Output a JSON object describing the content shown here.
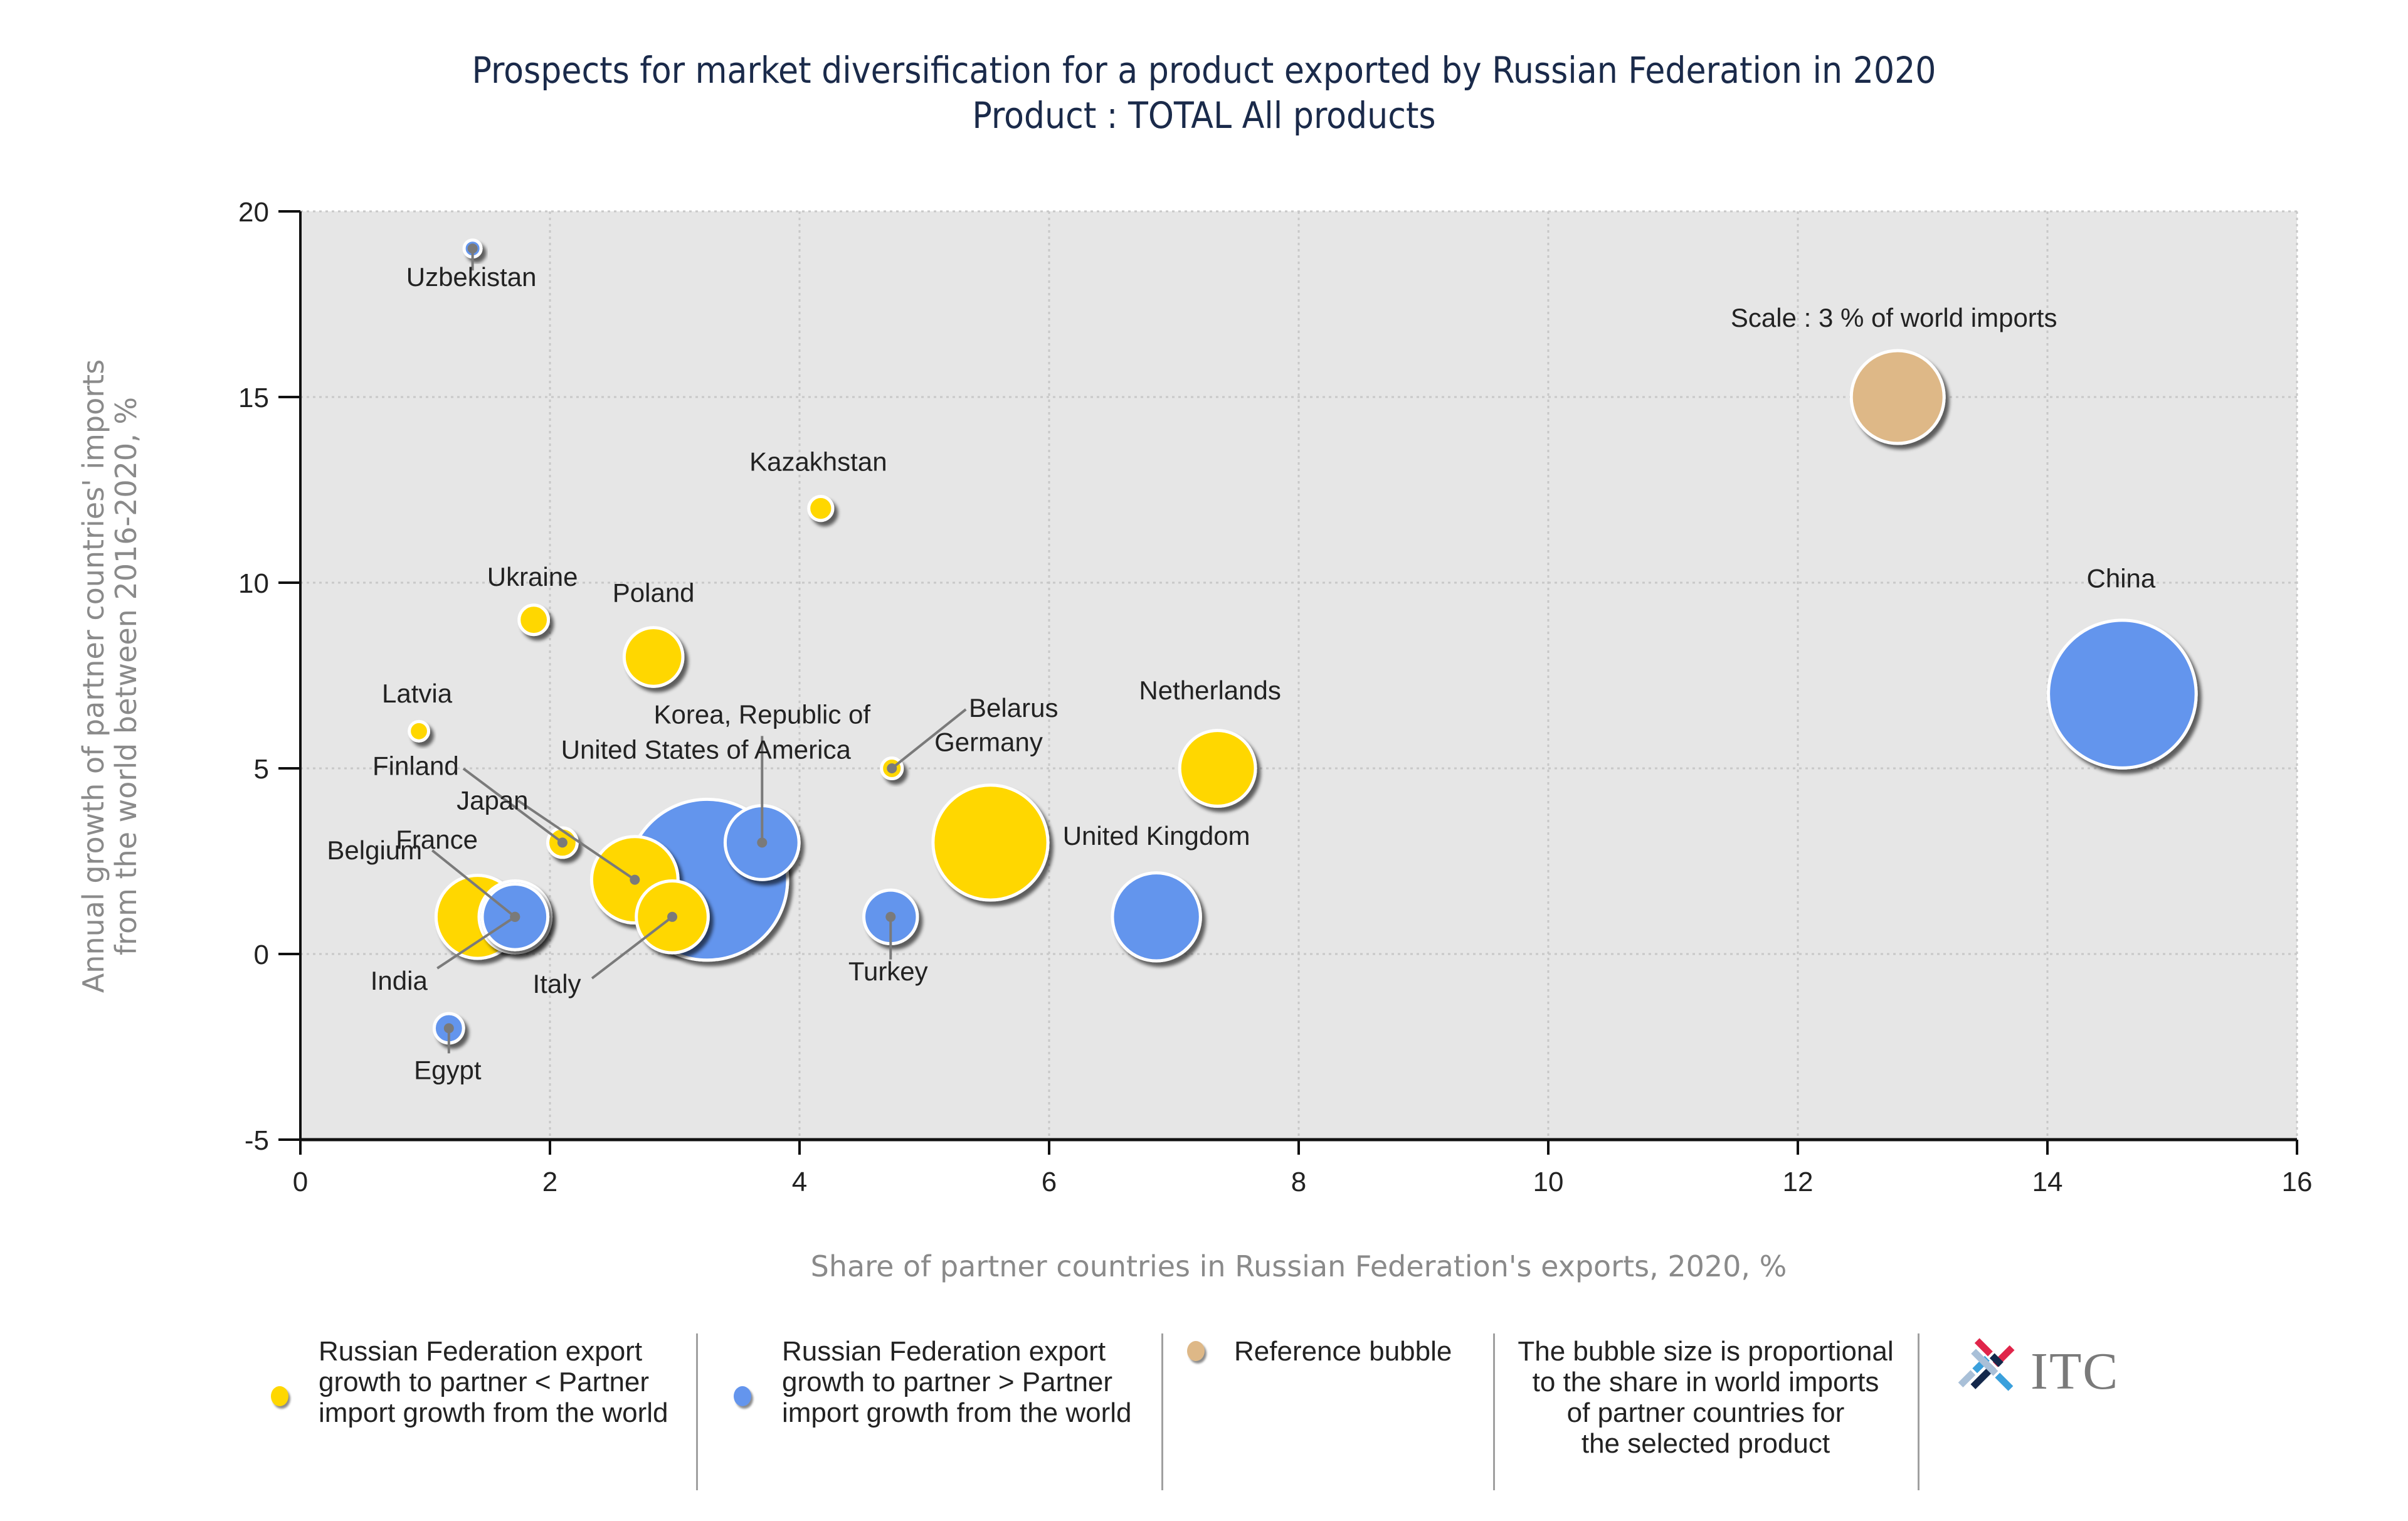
{
  "chart_data": {
    "type": "bubble",
    "title": "Prospects for market diversification for a product exported by Russian Federation in 2020",
    "subtitle": "Product : TOTAL All products",
    "xlabel": "Share of partner countries in Russian Federation's exports, 2020, %",
    "ylabel_line1": "Annual growth of partner countries' imports",
    "ylabel_line2": "from the world between 2016-2020, %",
    "xlim": [
      0,
      16
    ],
    "ylim": [
      -5,
      20
    ],
    "x_ticks": [
      0,
      2,
      4,
      6,
      8,
      10,
      12,
      14,
      16
    ],
    "y_ticks": [
      -5,
      0,
      5,
      10,
      15,
      20
    ],
    "x_tick_labels": [
      "0",
      "2",
      "4",
      "6",
      "8",
      "10",
      "12",
      "14",
      "16"
    ],
    "y_tick_labels": [
      "-5",
      "0",
      "5",
      "10",
      "15",
      "20"
    ],
    "grid": true,
    "size_note": "bubble size proportional to share in world imports (relative)",
    "colors": {
      "slower": "#FFD700",
      "faster": "#6495ED",
      "reference": "#DEB887",
      "plot_bg": "#E6E6E6"
    },
    "series": [
      {
        "name": "Russian Federation export growth to partner < Partner import growth from the world",
        "key": "slower"
      },
      {
        "name": "Russian Federation export growth to partner > Partner import growth from the world",
        "key": "faster"
      },
      {
        "name": "Reference bubble",
        "key": "reference"
      }
    ],
    "points": [
      {
        "country": "United States of America",
        "x": 3.26,
        "y": 2.0,
        "size": 9.0,
        "group": "faster"
      },
      {
        "country": "China",
        "x": 14.6,
        "y": 7.0,
        "size": 7.6,
        "group": "faster"
      },
      {
        "country": "Germany",
        "x": 5.53,
        "y": 3.0,
        "size": 4.6,
        "group": "slower"
      },
      {
        "country": "United Kingdom",
        "x": 6.86,
        "y": 1.0,
        "size": 2.7,
        "group": "faster"
      },
      {
        "country": "France",
        "x": 1.42,
        "y": 1.0,
        "size": 2.4,
        "group": "slower"
      },
      {
        "country": "Japan",
        "x": 2.68,
        "y": 2.0,
        "size": 2.6,
        "group": "slower"
      },
      {
        "country": "Netherlands",
        "x": 7.35,
        "y": 5.0,
        "size": 2.0,
        "group": "slower"
      },
      {
        "country": "Korea, Republic of",
        "x": 3.7,
        "y": 3.0,
        "size": 1.9,
        "group": "faster"
      },
      {
        "country": "Belgium",
        "x": 1.72,
        "y": 1.0,
        "size": 1.5,
        "group": "faster"
      },
      {
        "country": "India",
        "x": 1.72,
        "y": 1.0,
        "size": 1.8,
        "group": "faster"
      },
      {
        "country": "Italy",
        "x": 2.98,
        "y": 1.0,
        "size": 1.8,
        "group": "slower"
      },
      {
        "country": "Poland",
        "x": 2.83,
        "y": 8.0,
        "size": 1.2,
        "group": "slower"
      },
      {
        "country": "Turkey",
        "x": 4.73,
        "y": 1.0,
        "size": 1.0,
        "group": "faster"
      },
      {
        "country": "Finland",
        "x": 2.1,
        "y": 3.0,
        "size": 0.3,
        "group": "slower"
      },
      {
        "country": "Ukraine",
        "x": 1.87,
        "y": 9.0,
        "size": 0.3,
        "group": "slower"
      },
      {
        "country": "Kazakhstan",
        "x": 4.17,
        "y": 12.0,
        "size": 0.2,
        "group": "slower"
      },
      {
        "country": "Egypt",
        "x": 1.19,
        "y": -2.0,
        "size": 0.3,
        "group": "faster"
      },
      {
        "country": "Belarus",
        "x": 4.74,
        "y": 5.0,
        "size": 0.15,
        "group": "slower"
      },
      {
        "country": "Latvia",
        "x": 0.95,
        "y": 6.0,
        "size": 0.13,
        "group": "slower"
      },
      {
        "country": "Uzbekistan",
        "x": 1.38,
        "y": 19.0,
        "size": 0.1,
        "group": "faster"
      }
    ],
    "reference_bubble": {
      "label": "Scale : 3 % of world imports",
      "x": 12.8,
      "y": 15.0,
      "size": 3.0,
      "group": "reference"
    }
  },
  "legend": {
    "items": [
      {
        "lines": [
          "Russian Federation export",
          "growth to partner < Partner",
          "import growth from the world"
        ],
        "color": "#FFD700"
      },
      {
        "lines": [
          "Russian Federation export",
          "growth to partner > Partner",
          "import growth from the world"
        ],
        "color": "#6495ED"
      },
      {
        "lines": [
          "Reference bubble"
        ],
        "color": "#DEB887"
      }
    ],
    "note_lines": [
      "The bubble size is proportional",
      "to the share in world imports",
      "of partner countries for",
      "the selected product"
    ]
  },
  "logo": {
    "text": "ITC"
  }
}
